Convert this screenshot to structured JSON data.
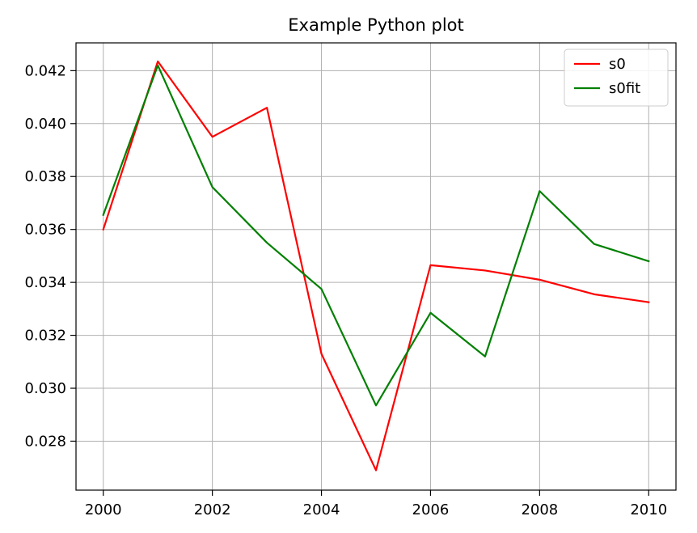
{
  "chart_data": {
    "type": "line",
    "title": "Example Python plot",
    "xlabel": "",
    "ylabel": "",
    "xlim": [
      1999.5,
      2010.5
    ],
    "ylim": [
      0.02615,
      0.04305
    ],
    "x_ticks": [
      2000,
      2002,
      2004,
      2006,
      2008,
      2010
    ],
    "y_ticks": [
      0.028,
      0.03,
      0.032,
      0.034,
      0.036,
      0.038,
      0.04,
      0.042
    ],
    "x_tick_labels": [
      "2000",
      "2002",
      "2004",
      "2006",
      "2008",
      "2010"
    ],
    "y_tick_labels": [
      "0.028",
      "0.030",
      "0.032",
      "0.034",
      "0.036",
      "0.038",
      "0.040",
      "0.042"
    ],
    "grid": true,
    "legend_position": "top-right",
    "x": [
      2000,
      2001,
      2002,
      2003,
      2004,
      2005,
      2006,
      2007,
      2008,
      2009,
      2010
    ],
    "series": [
      {
        "name": "s0",
        "color": "#ff0000",
        "values": [
          0.036,
          0.04235,
          0.0395,
          0.0406,
          0.0313,
          0.0269,
          0.03465,
          0.03445,
          0.0341,
          0.03355,
          0.03325
        ]
      },
      {
        "name": "s0fit",
        "color": "#008000",
        "values": [
          0.03655,
          0.0422,
          0.0376,
          0.0355,
          0.03375,
          0.02935,
          0.03285,
          0.0312,
          0.03745,
          0.03545,
          0.0348
        ]
      }
    ]
  }
}
